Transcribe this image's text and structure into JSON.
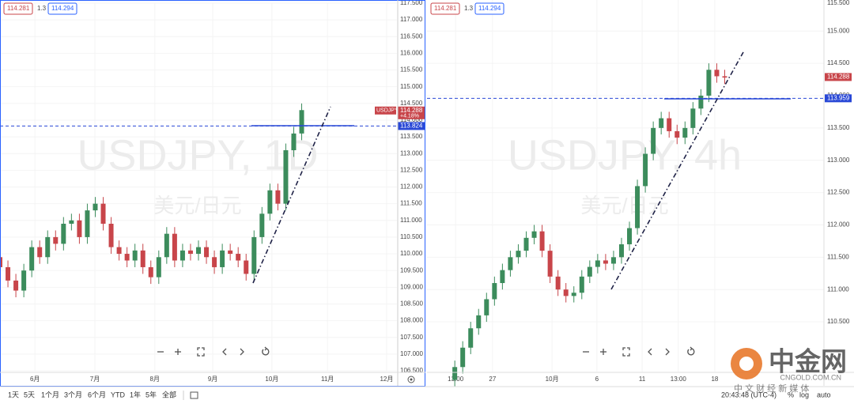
{
  "chart_data": [
    {
      "type": "candlestick",
      "title": "USDJPY, 1D",
      "subtitle": "美元/日元",
      "symbol_label": "USDJPY",
      "quote": {
        "bid": 114.281,
        "spread": 1.3,
        "ask": 114.294
      },
      "last_price": 114.288,
      "change": "+4.18%",
      "price_line": 113.824,
      "up_color": "#3c8c5c",
      "down_color": "#c8454a",
      "grid": true,
      "x": [
        0,
        2,
        4,
        6,
        8,
        10,
        12,
        14,
        16,
        18,
        20,
        22,
        24,
        26,
        28,
        30,
        32,
        34,
        36,
        38,
        40,
        42,
        44,
        46,
        48,
        50,
        52,
        54,
        56,
        58,
        60,
        62,
        64,
        66,
        68,
        70,
        72,
        74,
        76
      ],
      "open": [
        109.9,
        109.6,
        109.2,
        108.9,
        109.5,
        110.2,
        109.9,
        110.5,
        110.3,
        110.9,
        111.0,
        110.5,
        111.3,
        111.5,
        110.9,
        110.2,
        110.0,
        109.8,
        110.1,
        109.6,
        109.3,
        109.9,
        110.6,
        109.8,
        110.1,
        110.0,
        110.2,
        109.9,
        109.6,
        110.1,
        110.0,
        109.8,
        109.4,
        110.5,
        111.2,
        111.9,
        111.5,
        113.1,
        113.6
      ],
      "high": [
        110.1,
        109.8,
        109.4,
        109.7,
        110.4,
        110.4,
        110.7,
        110.7,
        111.1,
        111.2,
        111.2,
        111.5,
        111.7,
        111.7,
        111.1,
        110.4,
        110.2,
        110.3,
        110.3,
        109.8,
        110.1,
        110.8,
        110.8,
        110.3,
        110.3,
        110.4,
        110.4,
        110.1,
        110.3,
        110.3,
        110.2,
        110.0,
        110.7,
        111.4,
        112.1,
        112.1,
        113.3,
        113.8,
        114.5
      ],
      "low": [
        109.4,
        109.0,
        108.7,
        108.7,
        109.3,
        109.7,
        109.7,
        110.1,
        110.1,
        110.7,
        110.3,
        110.3,
        111.1,
        110.7,
        110.0,
        109.8,
        109.6,
        109.6,
        109.4,
        109.1,
        109.1,
        109.7,
        109.6,
        109.6,
        109.8,
        109.8,
        109.7,
        109.4,
        109.4,
        109.8,
        109.6,
        109.2,
        109.2,
        110.3,
        111.0,
        111.3,
        111.3,
        112.9,
        113.4
      ],
      "close": [
        109.6,
        109.2,
        108.9,
        109.5,
        110.2,
        109.9,
        110.5,
        110.3,
        110.9,
        111.0,
        110.5,
        111.3,
        111.5,
        110.9,
        110.2,
        110.0,
        109.8,
        110.1,
        109.6,
        109.3,
        109.9,
        110.6,
        109.8,
        110.1,
        110.0,
        110.2,
        109.9,
        109.6,
        110.1,
        110.0,
        109.8,
        109.4,
        110.5,
        111.2,
        111.9,
        111.5,
        113.1,
        113.6,
        114.3
      ],
      "xlim": [
        0,
        100
      ],
      "xticks": [
        {
          "value": 8.8,
          "label": "6月"
        },
        {
          "value": 23.9,
          "label": "7月"
        },
        {
          "value": 39,
          "label": "8月"
        },
        {
          "value": 53.6,
          "label": "9月"
        },
        {
          "value": 68.5,
          "label": "10月"
        },
        {
          "value": 82.5,
          "label": "11月"
        },
        {
          "value": 97.4,
          "label": "12月"
        }
      ],
      "ylim": [
        106.5,
        117.5
      ],
      "yticks": [
        {
          "value": 106.5,
          "label": "106.500"
        },
        {
          "value": 107,
          "label": "107.000"
        },
        {
          "value": 107.5,
          "label": "107.500"
        },
        {
          "value": 108,
          "label": "108.000"
        },
        {
          "value": 108.5,
          "label": "108.500"
        },
        {
          "value": 109,
          "label": "109.000"
        },
        {
          "value": 109.5,
          "label": "109.500"
        },
        {
          "value": 110,
          "label": "110.000"
        },
        {
          "value": 110.5,
          "label": "110.500"
        },
        {
          "value": 111,
          "label": "111.000"
        },
        {
          "value": 111.5,
          "label": "111.500"
        },
        {
          "value": 112,
          "label": "112.000"
        },
        {
          "value": 112.5,
          "label": "112.500"
        },
        {
          "value": 113,
          "label": "113.000"
        },
        {
          "value": 113.5,
          "label": "113.500"
        },
        {
          "value": 114,
          "label": "114.000"
        },
        {
          "value": 114.5,
          "label": "114.500"
        },
        {
          "value": 115,
          "label": "115.000"
        },
        {
          "value": 115.5,
          "label": "115.500"
        },
        {
          "value": 116,
          "label": "116.000"
        },
        {
          "value": 116.5,
          "label": "116.500"
        },
        {
          "value": 117,
          "label": "117.000"
        },
        {
          "value": 117.5,
          "label": "117.500"
        }
      ]
    },
    {
      "type": "candlestick",
      "title": "USDJPY, 4h",
      "subtitle": "美元/日元",
      "quote": {
        "bid": 114.281,
        "spread": 1.3,
        "ask": 114.294
      },
      "last_price": 114.288,
      "price_line": 113.959,
      "up_color": "#3c8c5c",
      "down_color": "#c8454a",
      "grid": true,
      "x": [
        7,
        9,
        11,
        13,
        15,
        17,
        19,
        21,
        23,
        25,
        27,
        29,
        31,
        33,
        35,
        37,
        39,
        41,
        43,
        45,
        47,
        49,
        51,
        53,
        55,
        57,
        59,
        61,
        63,
        65,
        67,
        69,
        71,
        73,
        75
      ],
      "open": [
        109.6,
        109.8,
        110.1,
        110.4,
        110.6,
        110.85,
        111.1,
        111.3,
        111.5,
        111.6,
        111.8,
        111.9,
        111.6,
        111.2,
        111.0,
        110.9,
        110.95,
        111.2,
        111.35,
        111.45,
        111.4,
        111.5,
        111.7,
        111.95,
        112.6,
        113.1,
        113.5,
        113.65,
        113.45,
        113.35,
        113.5,
        113.8,
        114.0,
        114.4,
        114.3
      ],
      "high": [
        109.9,
        110.2,
        110.5,
        110.7,
        110.95,
        111.2,
        111.4,
        111.6,
        111.7,
        111.9,
        112.0,
        112.0,
        111.7,
        111.3,
        111.1,
        111.05,
        111.3,
        111.45,
        111.55,
        111.55,
        111.6,
        111.8,
        112.05,
        112.7,
        113.2,
        113.6,
        113.75,
        113.75,
        113.55,
        113.6,
        113.9,
        114.1,
        114.5,
        114.5,
        114.4
      ],
      "low": [
        109.5,
        109.7,
        110.0,
        110.3,
        110.5,
        110.75,
        111.0,
        111.2,
        111.4,
        111.5,
        111.7,
        111.5,
        111.1,
        110.9,
        110.8,
        110.8,
        110.85,
        111.1,
        111.25,
        111.3,
        111.3,
        111.4,
        111.6,
        111.85,
        112.5,
        113.0,
        113.4,
        113.35,
        113.25,
        113.25,
        113.4,
        113.7,
        113.9,
        114.2,
        114.18
      ],
      "close": [
        109.8,
        110.1,
        110.4,
        110.6,
        110.85,
        111.1,
        111.3,
        111.5,
        111.6,
        111.8,
        111.9,
        111.6,
        111.2,
        111.0,
        110.9,
        110.95,
        111.2,
        111.35,
        111.45,
        111.4,
        111.5,
        111.7,
        111.95,
        112.6,
        113.1,
        113.5,
        113.65,
        113.45,
        113.35,
        113.5,
        113.8,
        114.0,
        114.4,
        114.3,
        114.28
      ],
      "xlim": [
        0,
        100
      ],
      "xticks": [
        {
          "value": 7.2,
          "label": "13:00"
        },
        {
          "value": 16.5,
          "label": "27"
        },
        {
          "value": 31.5,
          "label": "10月"
        },
        {
          "value": 42.8,
          "label": "6"
        },
        {
          "value": 54.2,
          "label": "11"
        },
        {
          "value": 63.3,
          "label": "13:00"
        },
        {
          "value": 72.5,
          "label": "18"
        }
      ],
      "ylim": [
        109.73,
        115.48
      ],
      "yticks": [
        {
          "value": 110.5,
          "label": "110.500"
        },
        {
          "value": 111,
          "label": "111.000"
        },
        {
          "value": 111.5,
          "label": "111.500"
        },
        {
          "value": 112,
          "label": "112.000"
        },
        {
          "value": 112.5,
          "label": "112.500"
        },
        {
          "value": 113,
          "label": "113.000"
        },
        {
          "value": 113.5,
          "label": "113.500"
        },
        {
          "value": 114,
          "label": "114.000"
        },
        {
          "value": 114.5,
          "label": "114.500"
        },
        {
          "value": 115,
          "label": "115.000"
        },
        {
          "value": 115.5,
          "label": "115.500"
        }
      ]
    }
  ],
  "toolbar": {
    "ranges": [
      "1天",
      "5天",
      "1个月",
      "3个月",
      "6个月",
      "YTD",
      "1年",
      "5年",
      "全部"
    ],
    "time": "20:43:48 (UTC-4)",
    "options": [
      "%",
      "log",
      "auto"
    ]
  },
  "logo": {
    "name": "中金网",
    "site": "CNGOLD.COM.CN",
    "slogan": "中 文 财 经 新 媒 体"
  }
}
